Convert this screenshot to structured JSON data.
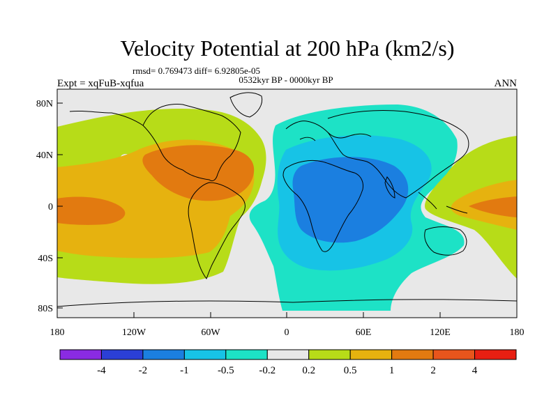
{
  "title": "Velocity Potential at 200 hPa (km2/s)",
  "stats_line": "rmsd= 0.769473 diff= 6.92805e-05",
  "period_line": "0532kyr BP - 0000kyr BP",
  "left_label": "Expt = xqFuB-xqfua",
  "right_label": "ANN",
  "lat_ticks": [
    "80N",
    "40N",
    "0",
    "40S",
    "80S"
  ],
  "lon_ticks": [
    "180",
    "120W",
    "60W",
    "0",
    "60E",
    "120E",
    "180"
  ],
  "colorbar": {
    "labels": [
      "-4",
      "-2",
      "-1",
      "-0.5",
      "-0.2",
      "0.2",
      "0.5",
      "1",
      "2",
      "4"
    ],
    "colors": [
      "#8a2be2",
      "#2b3fd6",
      "#1b7fe0",
      "#17c3e6",
      "#1de2c6",
      "#e8e8e8",
      "#b7dc18",
      "#e6b20f",
      "#e27a10",
      "#e8551c",
      "#e81f12"
    ]
  },
  "palette": {
    "land_bg": "#e8e8e8",
    "green": "#b7dc18",
    "yellow": "#e6b20f",
    "orange": "#e27a10",
    "teal": "#1de2c6",
    "cyan": "#17c3e6",
    "blue": "#1b7fe0"
  }
}
